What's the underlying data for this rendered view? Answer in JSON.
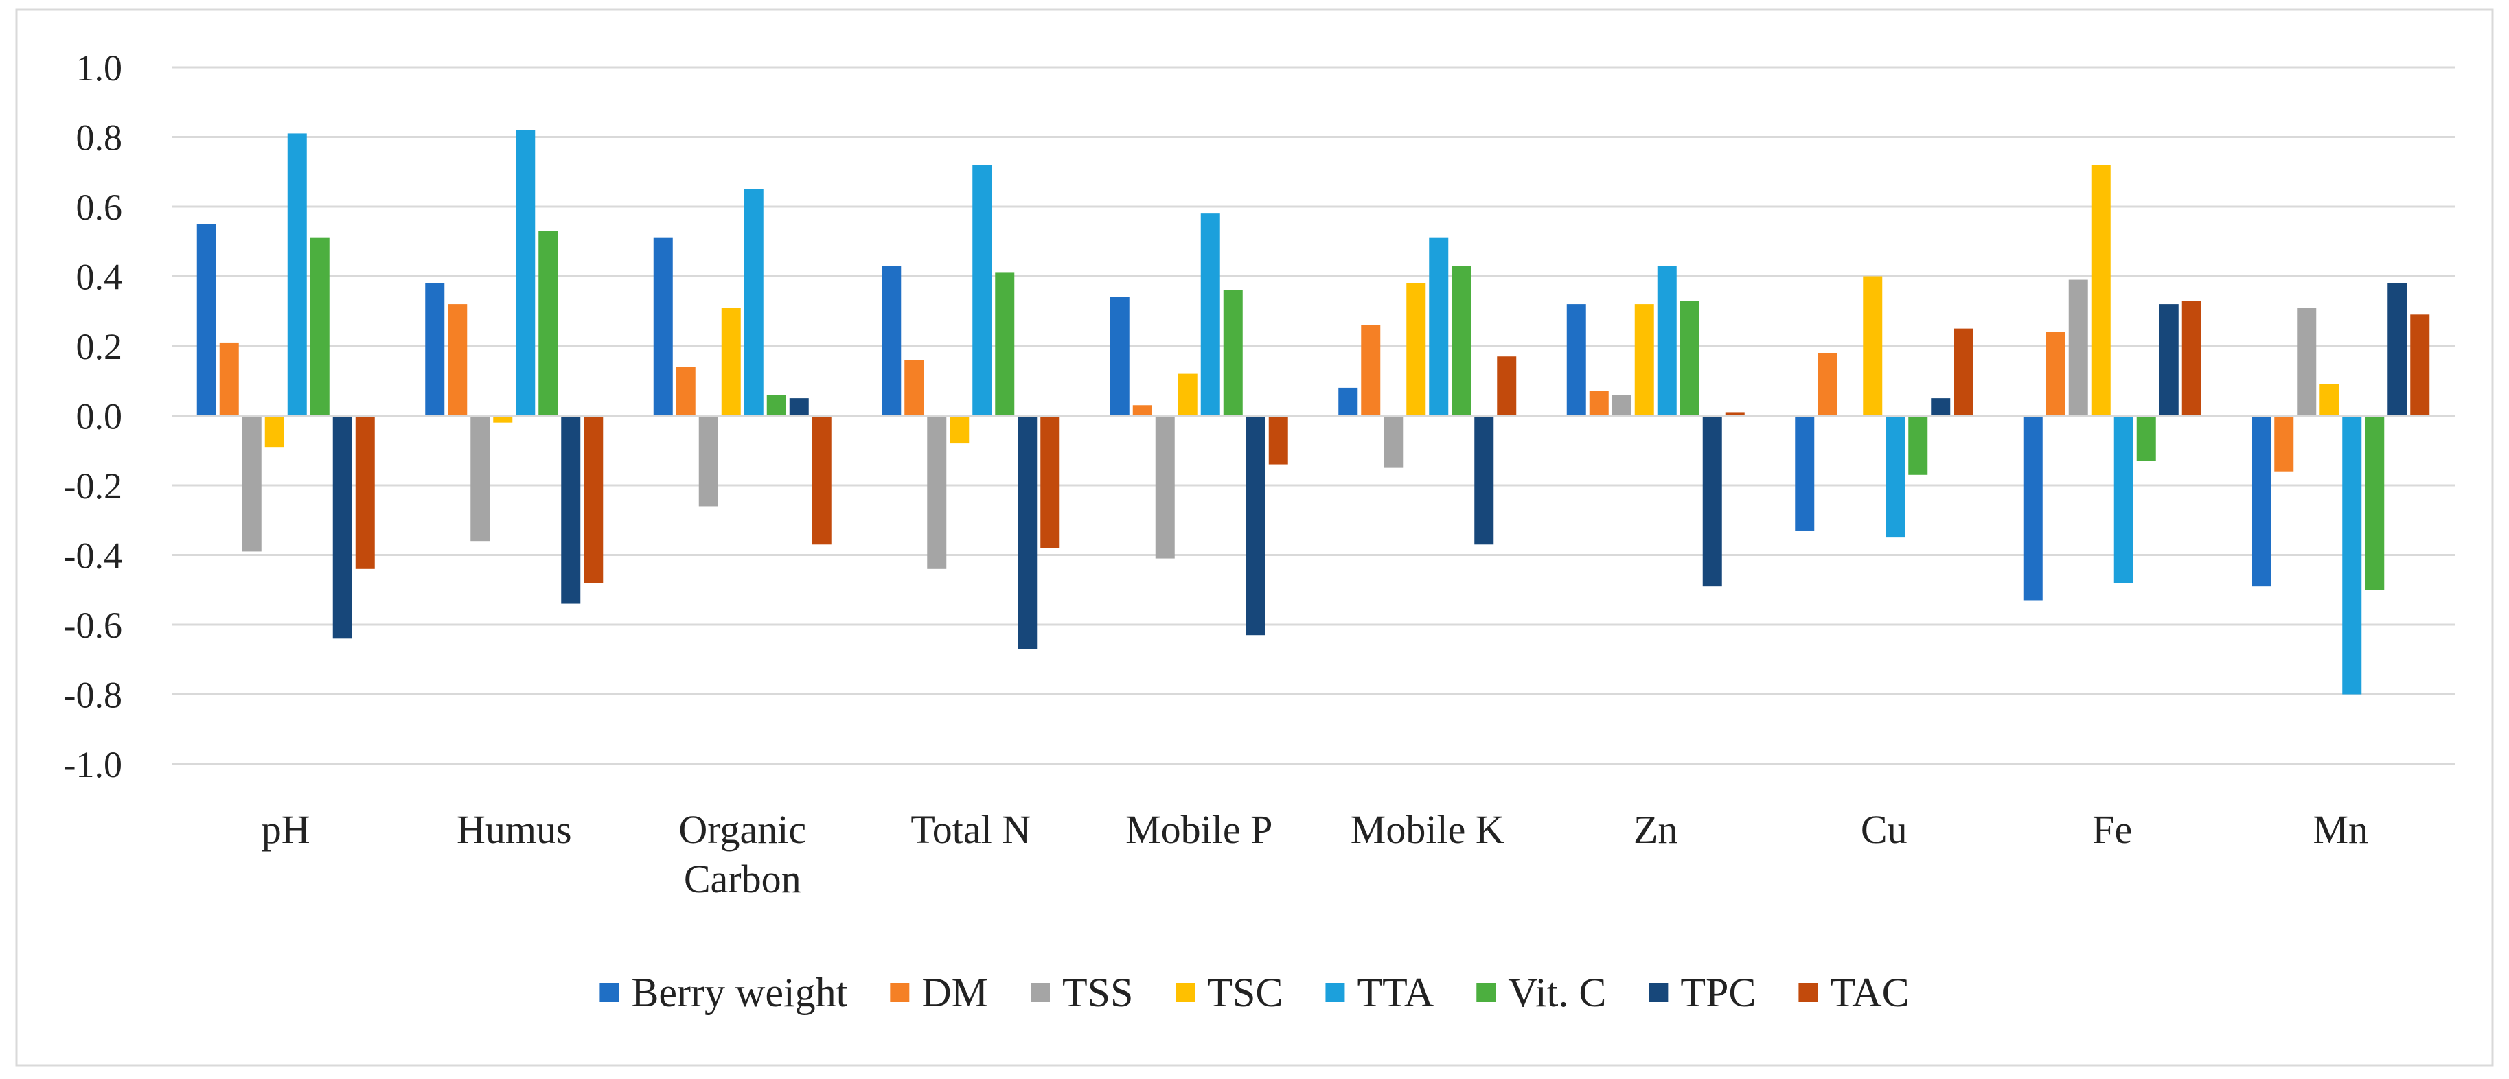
{
  "chart_data": {
    "type": "bar",
    "title": "",
    "xlabel": "",
    "ylabel": "",
    "ylim": [
      -1.0,
      1.0
    ],
    "y_ticks": [
      "1.0",
      "0.8",
      "0.6",
      "0.4",
      "0.2",
      "0.0",
      "-0.2",
      "-0.4",
      "-0.6",
      "-0.8",
      "-1.0"
    ],
    "grid": true,
    "legend_position": "bottom",
    "categories": [
      {
        "lines": [
          "pH"
        ]
      },
      {
        "lines": [
          "Humus"
        ]
      },
      {
        "lines": [
          "Organic",
          "Carbon"
        ]
      },
      {
        "lines": [
          "Total N"
        ]
      },
      {
        "lines": [
          "Mobile P"
        ]
      },
      {
        "lines": [
          "Mobile K"
        ]
      },
      {
        "lines": [
          "Zn"
        ]
      },
      {
        "lines": [
          "Cu"
        ]
      },
      {
        "lines": [
          "Fe"
        ]
      },
      {
        "lines": [
          "Mn"
        ]
      }
    ],
    "series": [
      {
        "name": "Berry weight",
        "color": "#1F6FC5",
        "values": [
          0.55,
          0.38,
          0.51,
          0.43,
          0.34,
          0.08,
          0.32,
          -0.33,
          -0.53,
          -0.49
        ]
      },
      {
        "name": "DM",
        "color": "#F58025",
        "values": [
          0.21,
          0.32,
          0.14,
          0.16,
          0.03,
          0.26,
          0.07,
          0.18,
          0.24,
          -0.16
        ]
      },
      {
        "name": "TSS",
        "color": "#A5A5A5",
        "values": [
          -0.39,
          -0.36,
          -0.26,
          -0.44,
          -0.41,
          -0.15,
          0.06,
          0.0,
          0.39,
          0.31
        ]
      },
      {
        "name": "TSC",
        "color": "#FFC000",
        "values": [
          -0.09,
          -0.02,
          0.31,
          -0.08,
          0.12,
          0.38,
          0.32,
          0.4,
          0.72,
          0.09
        ]
      },
      {
        "name": "TTA",
        "color": "#1CA0DC",
        "values": [
          0.81,
          0.82,
          0.65,
          0.72,
          0.58,
          0.51,
          0.43,
          -0.35,
          -0.48,
          -0.8
        ]
      },
      {
        "name": "Vit. C",
        "color": "#4CAF3F",
        "values": [
          0.51,
          0.53,
          0.06,
          0.41,
          0.36,
          0.43,
          0.33,
          -0.17,
          -0.13,
          -0.5
        ]
      },
      {
        "name": "TPC",
        "color": "#17477A",
        "values": [
          -0.64,
          -0.54,
          0.05,
          -0.67,
          -0.63,
          -0.37,
          -0.49,
          0.05,
          0.32,
          0.38
        ]
      },
      {
        "name": "TAC",
        "color": "#C24A0C",
        "values": [
          -0.44,
          -0.48,
          -0.37,
          -0.38,
          -0.14,
          0.17,
          0.01,
          0.25,
          0.33,
          0.29
        ]
      }
    ]
  },
  "colors": {
    "gridline": "#D9D9D9",
    "frame": "#D9D9D9",
    "text": "#222222"
  }
}
